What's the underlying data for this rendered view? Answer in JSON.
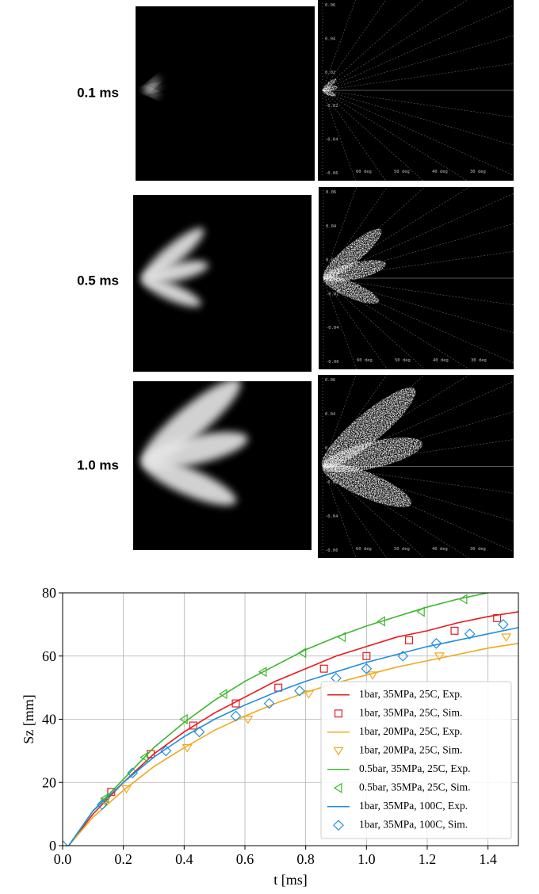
{
  "images": [
    {
      "label": "0.1 ms"
    },
    {
      "label": "0.5 ms"
    },
    {
      "label": "1.0 ms"
    }
  ],
  "panel_axis_labels": [
    "0.06",
    "0.04",
    "0.02",
    "-0.02",
    "-0.04",
    "-0.06"
  ],
  "panel_angle_labels": [
    "60 deg",
    "50 deg",
    "40 deg",
    "30 deg"
  ],
  "chart_data": {
    "type": "line",
    "xlabel": "t [ms]",
    "ylabel": "Sz [mm]",
    "xlim": [
      0,
      1.5
    ],
    "ylim": [
      0,
      80
    ],
    "xticks": [
      {
        "value": 0,
        "label": "0.0"
      },
      0.2,
      0.4,
      0.6,
      0.8,
      {
        "value": 1,
        "label": "1.0"
      },
      1.2,
      1.4
    ],
    "yticks": [
      0,
      20,
      40,
      60,
      80
    ],
    "grid": true,
    "legend": "lower right",
    "series": [
      {
        "name": "1bar, 35MPa, 25C, Exp.",
        "color": "#e8191c",
        "x": [
          0.02,
          0.1,
          0.2,
          0.3,
          0.4,
          0.5,
          0.6,
          0.7,
          0.8,
          0.9,
          1.0,
          1.1,
          1.2,
          1.3,
          1.4,
          1.5
        ],
        "values": [
          0,
          10,
          20,
          29,
          36,
          42,
          47,
          52,
          56,
          60,
          63,
          66,
          68,
          70.5,
          72.5,
          74
        ]
      },
      {
        "name": "1bar, 35MPa, 25C, Sim.",
        "color": "#e8191c",
        "marker": "square",
        "x": [
          0.16,
          0.29,
          0.43,
          0.57,
          0.71,
          0.86,
          1.0,
          1.14,
          1.29,
          1.43
        ],
        "values": [
          17,
          29,
          38,
          45,
          50,
          56,
          60,
          65,
          68,
          72
        ]
      },
      {
        "name": "1bar, 20MPa, 25C, Exp.",
        "color": "#f2a81d",
        "x": [
          0.02,
          0.1,
          0.2,
          0.3,
          0.4,
          0.5,
          0.6,
          0.7,
          0.8,
          0.9,
          1.0,
          1.1,
          1.2,
          1.3,
          1.4,
          1.5
        ],
        "values": [
          0,
          9,
          17.5,
          25,
          31,
          36.5,
          41,
          45,
          48.5,
          51.5,
          54,
          56.5,
          58.5,
          60.5,
          62.5,
          64
        ]
      },
      {
        "name": "1bar, 20MPa, 25C, Sim.",
        "color": "#f2a81d",
        "marker": "triangle-down",
        "x": [
          0.14,
          0.21,
          0.41,
          0.61,
          0.81,
          1.02,
          1.24,
          1.46
        ],
        "values": [
          14,
          18,
          31,
          40,
          48,
          54,
          60,
          66
        ]
      },
      {
        "name": "0.5bar, 35MPa, 25C, Exp.",
        "color": "#3cb82e",
        "x": [
          0.02,
          0.1,
          0.2,
          0.3,
          0.4,
          0.5,
          0.6,
          0.7,
          0.8,
          0.9,
          1.0,
          1.1,
          1.2,
          1.3,
          1.4
        ],
        "values": [
          0,
          11,
          21,
          31,
          39,
          46,
          52,
          57,
          62,
          66,
          69.5,
          72.5,
          75.5,
          78,
          80
        ]
      },
      {
        "name": "0.5bar, 35MPa, 25C, Sim.",
        "color": "#3cb82e",
        "marker": "triangle-left",
        "x": [
          0.14,
          0.27,
          0.4,
          0.53,
          0.66,
          0.79,
          0.92,
          1.05,
          1.18,
          1.32
        ],
        "values": [
          15,
          28,
          40,
          48,
          55,
          61,
          66,
          71,
          74,
          78
        ]
      },
      {
        "name": "1bar, 35MPa, 100C, Exp.",
        "color": "#1f8fe0",
        "x": [
          0.02,
          0.1,
          0.2,
          0.3,
          0.4,
          0.5,
          0.6,
          0.7,
          0.8,
          0.9,
          1.0,
          1.1,
          1.2,
          1.3,
          1.4,
          1.5
        ],
        "values": [
          0,
          11,
          20,
          28,
          34.5,
          40,
          44.5,
          48.5,
          52,
          55,
          58,
          60.5,
          63,
          65,
          67,
          69
        ]
      },
      {
        "name": "1bar, 35MPa, 100C, Sim.",
        "color": "#1f8fe0",
        "marker": "diamond",
        "x": [
          0,
          0.13,
          0.23,
          0.34,
          0.45,
          0.57,
          0.68,
          0.78,
          0.9,
          1.0,
          1.12,
          1.23,
          1.34,
          1.45
        ],
        "values": [
          0,
          13,
          23,
          30,
          36,
          41,
          45,
          49,
          53,
          56,
          60,
          64,
          67,
          70
        ]
      }
    ]
  }
}
